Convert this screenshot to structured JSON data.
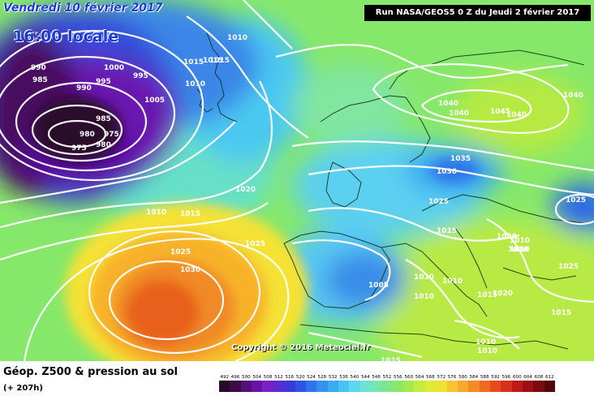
{
  "header": {
    "date": "Vendredi 10 février 2017",
    "time": "16:00 locale",
    "run": "Run NASA/GEOS5 0 Z du Jeudi 2 février 2017"
  },
  "copyright": "Copyright © 2016 Meteociel.fr",
  "footer": {
    "caption": "Géop. Z500 & pression au sol",
    "lead_time": "(+ 207h)"
  },
  "color_scale": {
    "ticks": [
      "492",
      "496",
      "500",
      "504",
      "508",
      "512",
      "516",
      "520",
      "524",
      "528",
      "532",
      "536",
      "540",
      "544",
      "548",
      "552",
      "556",
      "560",
      "564",
      "568",
      "572",
      "576",
      "580",
      "584",
      "588",
      "592",
      "596",
      "600",
      "604",
      "608",
      "612"
    ],
    "colors": [
      "#2a0a2a",
      "#3d0b48",
      "#52107a",
      "#6a12a8",
      "#7b1fc8",
      "#5a2ccc",
      "#3a3ad8",
      "#2f55e0",
      "#2f74ea",
      "#3391ef",
      "#3aaaf2",
      "#48c3f2",
      "#5cd7ee",
      "#6fe2d6",
      "#76e6b0",
      "#7de68a",
      "#8ae868",
      "#a4ea4c",
      "#c2ec3e",
      "#dcec34",
      "#f0e034",
      "#f8c430",
      "#f8a82c",
      "#f68a28",
      "#f06a22",
      "#e84a1e",
      "#d8301a",
      "#c01818",
      "#9e0e12",
      "#7a0a0e",
      "#560606"
    ]
  },
  "pressure_labels": [
    {
      "text": "985"
    },
    {
      "text": "990"
    },
    {
      "text": "985"
    },
    {
      "text": "990"
    },
    {
      "text": "995"
    },
    {
      "text": "1000"
    },
    {
      "text": "995"
    },
    {
      "text": "1005"
    },
    {
      "text": "985"
    },
    {
      "text": "980"
    },
    {
      "text": "975"
    },
    {
      "text": "975"
    },
    {
      "text": "980"
    },
    {
      "text": "1010"
    },
    {
      "text": "1015"
    },
    {
      "text": "1015"
    },
    {
      "text": "1010"
    },
    {
      "text": "1015"
    },
    {
      "text": "1020"
    },
    {
      "text": "1010"
    },
    {
      "text": "1015"
    },
    {
      "text": "1025"
    },
    {
      "text": "1030"
    },
    {
      "text": "1025"
    },
    {
      "text": "1040"
    },
    {
      "text": "1040"
    },
    {
      "text": "1040"
    },
    {
      "text": "1045"
    },
    {
      "text": "1040"
    },
    {
      "text": "1035"
    },
    {
      "text": "1030"
    },
    {
      "text": "1025"
    },
    {
      "text": "1025"
    },
    {
      "text": "1015"
    },
    {
      "text": "1020"
    },
    {
      "text": "1010"
    },
    {
      "text": "1010"
    },
    {
      "text": "1010"
    },
    {
      "text": "1005"
    },
    {
      "text": "1010"
    },
    {
      "text": "1010"
    },
    {
      "text": "1010"
    },
    {
      "text": "1015"
    },
    {
      "text": "1020"
    },
    {
      "text": "1025"
    },
    {
      "text": "1015"
    },
    {
      "text": "1010"
    },
    {
      "text": "1010"
    },
    {
      "text": "1015"
    }
  ]
}
